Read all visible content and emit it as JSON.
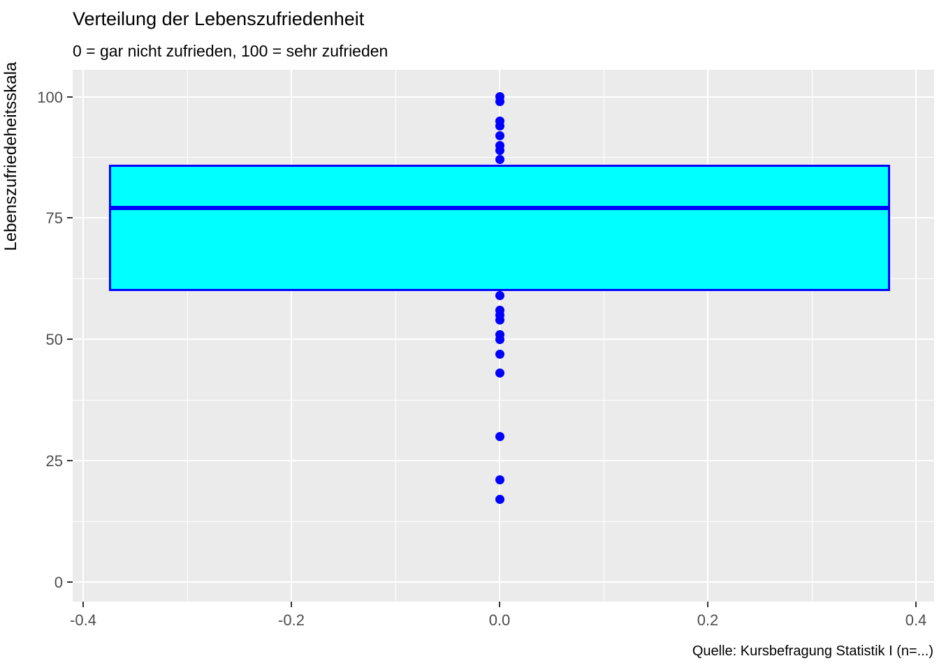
{
  "chart_data": {
    "type": "boxplot",
    "title": "Verteilung der Lebenszufriedenheit",
    "subtitle": "0 = gar nicht zufrieden, 100 = sehr zufrieden",
    "caption": "Quelle: Kursbefragung Statistik I (n=...)",
    "ylabel": "Lebenszufriedeheitsskala",
    "xlabel": "",
    "x_tick_labels": [
      "-0.4",
      "-0.2",
      "0.0",
      "0.2",
      "0.4"
    ],
    "x_tick_values": [
      -0.4,
      -0.2,
      0.0,
      0.2,
      0.4
    ],
    "x_minor_values": [
      -0.3,
      -0.1,
      0.1,
      0.3
    ],
    "y_tick_labels": [
      "0",
      "25",
      "50",
      "75",
      "100"
    ],
    "y_tick_values": [
      0,
      25,
      50,
      75,
      100
    ],
    "y_minor_values": [
      12.5,
      37.5,
      62.5,
      87.5
    ],
    "xlim": [
      -0.41,
      0.41
    ],
    "ylim": [
      -4,
      105.5
    ],
    "grid": "on",
    "legend": "none",
    "box": {
      "x_center": 0,
      "width": 0.75,
      "q1": 60,
      "median": 77,
      "q3": 86
    },
    "points": {
      "x": 0,
      "above_box": [
        100,
        99,
        95,
        94,
        92,
        90,
        89,
        87
      ],
      "below_box": [
        59,
        56,
        55,
        54,
        51,
        50,
        47,
        43,
        30,
        21,
        17
      ]
    },
    "colors": {
      "panel_bg": "#EBEBEB",
      "gridline": "#FFFFFF",
      "box_fill": "#00FFFF",
      "box_border": "#0000FF",
      "median": "#0000FF",
      "point": "#0000FF",
      "tick_text": "#4D4D4D",
      "tick_mark": "#333333",
      "title_text": "#000000"
    }
  }
}
